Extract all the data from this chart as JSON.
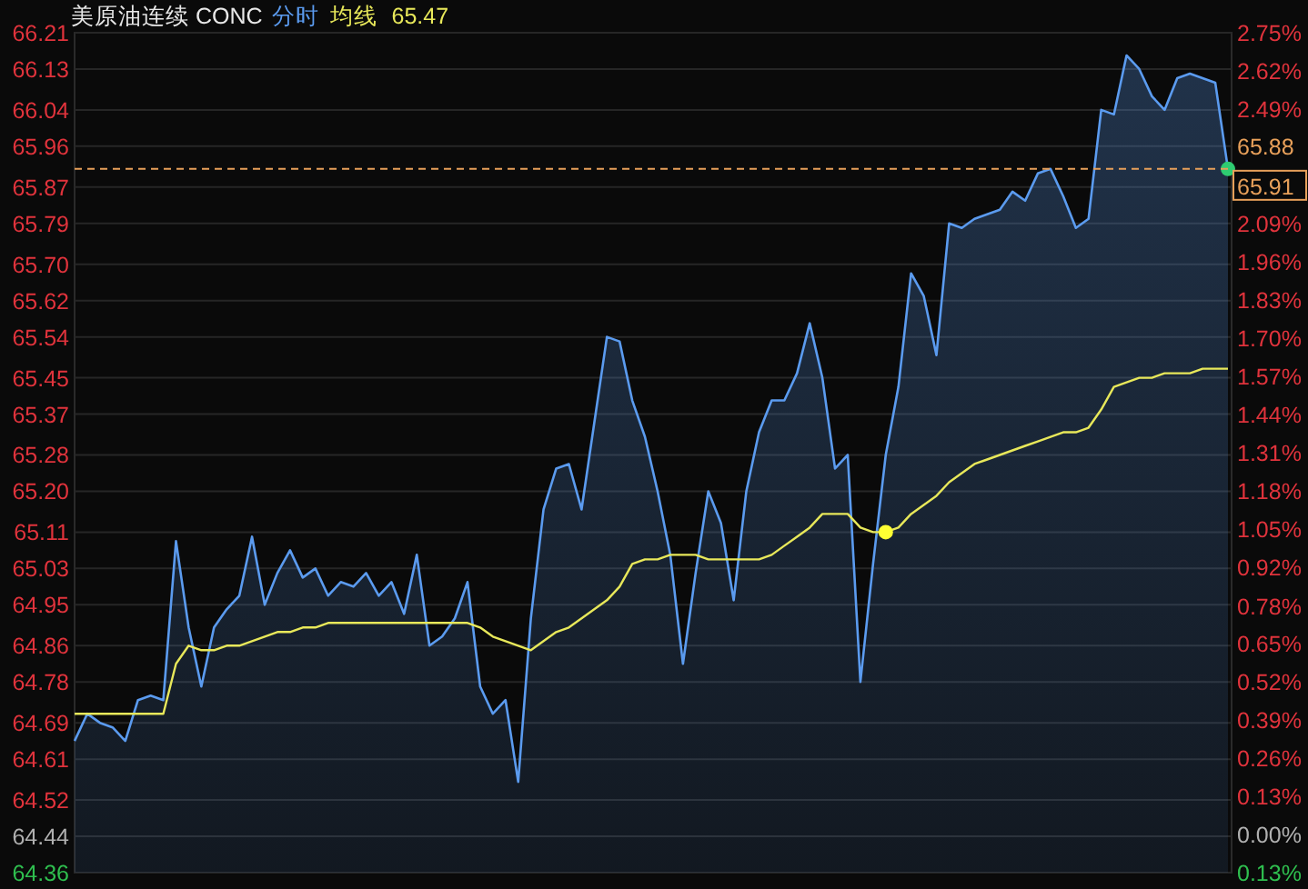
{
  "chart_data": {
    "type": "line",
    "title": "美原油连续 CONC",
    "categories": [
      null,
      null,
      null,
      null,
      null,
      null,
      null,
      null,
      null,
      null,
      null,
      null,
      null,
      null,
      null,
      null,
      null,
      null,
      null,
      null,
      null,
      null,
      null,
      null,
      null,
      null,
      null,
      null,
      null,
      null,
      null,
      null,
      null,
      null,
      null,
      null,
      null,
      null,
      null,
      null,
      null,
      null,
      null,
      null,
      null,
      null,
      null,
      null,
      null,
      null,
      null,
      null,
      null,
      null,
      null,
      null,
      null,
      null,
      null,
      null,
      null,
      null,
      null,
      null,
      null,
      null,
      null,
      null,
      null,
      null,
      null,
      null,
      null,
      null,
      null,
      null,
      null,
      null,
      null,
      null,
      null,
      null,
      null,
      null,
      null,
      null,
      null,
      null,
      null,
      null,
      null,
      null
    ],
    "series": [
      {
        "name": "分时",
        "type": "area",
        "color": "#5b9bef",
        "values": [
          64.65,
          64.71,
          64.69,
          64.68,
          64.65,
          64.74,
          64.75,
          64.74,
          65.09,
          64.9,
          64.77,
          64.9,
          64.94,
          64.97,
          65.1,
          64.95,
          65.02,
          65.07,
          65.01,
          65.03,
          64.97,
          65.0,
          64.99,
          65.02,
          64.97,
          65.0,
          64.93,
          65.06,
          64.86,
          64.88,
          64.92,
          65.0,
          64.77,
          64.71,
          64.74,
          64.56,
          64.92,
          65.16,
          65.25,
          65.26,
          65.16,
          65.35,
          65.54,
          65.53,
          65.4,
          65.32,
          65.2,
          65.06,
          64.82,
          65.02,
          65.2,
          65.13,
          64.96,
          65.2,
          65.33,
          65.4,
          65.4,
          65.46,
          65.57,
          65.45,
          65.25,
          65.28,
          64.78,
          65.04,
          65.28,
          65.43,
          65.68,
          65.63,
          65.5,
          65.79,
          65.78,
          65.8,
          65.81,
          65.82,
          65.86,
          65.84,
          65.9,
          65.91,
          65.85,
          65.78,
          65.8,
          66.04,
          66.03,
          66.16,
          66.13,
          66.07,
          66.04,
          66.11,
          66.12,
          66.11,
          66.1,
          65.91
        ]
      },
      {
        "name": "均线",
        "color": "#e8e85a",
        "values": [
          64.71,
          64.71,
          64.71,
          64.71,
          64.71,
          64.71,
          64.71,
          64.71,
          64.82,
          64.86,
          64.85,
          64.85,
          64.86,
          64.86,
          64.87,
          64.88,
          64.89,
          64.89,
          64.9,
          64.9,
          64.91,
          64.91,
          64.91,
          64.91,
          64.91,
          64.91,
          64.91,
          64.91,
          64.91,
          64.91,
          64.91,
          64.91,
          64.9,
          64.88,
          64.87,
          64.86,
          64.85,
          64.87,
          64.89,
          64.9,
          64.92,
          64.94,
          64.96,
          64.99,
          65.04,
          65.05,
          65.05,
          65.06,
          65.06,
          65.06,
          65.05,
          65.05,
          65.05,
          65.05,
          65.05,
          65.06,
          65.08,
          65.1,
          65.12,
          65.15,
          65.15,
          65.15,
          65.12,
          65.11,
          65.11,
          65.12,
          65.15,
          65.17,
          65.19,
          65.22,
          65.24,
          65.26,
          65.27,
          65.28,
          65.29,
          65.3,
          65.31,
          65.32,
          65.33,
          65.33,
          65.34,
          65.38,
          65.43,
          65.44,
          65.45,
          65.45,
          65.46,
          65.46,
          65.46,
          65.47,
          65.47,
          65.47
        ]
      },
      {
        "type": "scatter",
        "color": "#ffff33",
        "values": [
          null,
          null,
          null,
          null,
          null,
          null,
          null,
          null,
          null,
          null,
          null,
          null,
          null,
          null,
          null,
          null,
          null,
          null,
          null,
          null,
          null,
          null,
          null,
          null,
          null,
          null,
          null,
          null,
          null,
          null,
          null,
          null,
          null,
          null,
          null,
          null,
          null,
          null,
          null,
          null,
          null,
          null,
          null,
          null,
          null,
          null,
          null,
          null,
          null,
          null,
          null,
          null,
          null,
          null,
          null,
          null,
          null,
          null,
          null,
          null,
          null,
          null,
          null,
          null,
          65.11,
          null,
          null,
          null,
          null,
          null,
          null,
          null,
          null,
          null,
          null,
          null,
          null,
          null,
          null,
          null,
          null,
          null,
          null,
          null,
          null,
          null,
          null,
          null,
          null,
          null,
          null,
          null
        ]
      },
      {
        "type": "scatter",
        "color": "#2ecc71",
        "values": [
          null,
          null,
          null,
          null,
          null,
          null,
          null,
          null,
          null,
          null,
          null,
          null,
          null,
          null,
          null,
          null,
          null,
          null,
          null,
          null,
          null,
          null,
          null,
          null,
          null,
          null,
          null,
          null,
          null,
          null,
          null,
          null,
          null,
          null,
          null,
          null,
          null,
          null,
          null,
          null,
          null,
          null,
          null,
          null,
          null,
          null,
          null,
          null,
          null,
          null,
          null,
          null,
          null,
          null,
          null,
          null,
          null,
          null,
          null,
          null,
          null,
          null,
          null,
          null,
          null,
          null,
          null,
          null,
          null,
          null,
          null,
          null,
          null,
          null,
          null,
          null,
          null,
          null,
          null,
          null,
          null,
          null,
          null,
          null,
          null,
          null,
          null,
          null,
          null,
          null,
          null,
          65.91
        ]
      }
    ],
    "ylim": [
      64.36,
      66.21
    ],
    "yticks": [
      64.36,
      64.44,
      64.52,
      64.61,
      64.69,
      64.78,
      64.86,
      64.95,
      65.03,
      65.11,
      {
        "value": 65.2,
        "label": "65.20"
      },
      65.28,
      65.37,
      65.45,
      65.54,
      65.62,
      {
        "value": 65.7,
        "label": "65.70"
      },
      65.79,
      65.87,
      65.96,
      66.04,
      66.13,
      66.21
    ],
    "y2lim": [
      -0.131,
      2.75
    ],
    "y2ticks": [
      {
        "value": -0.131,
        "label": "0.13%"
      },
      {
        "value": 0,
        "label": "0.00%"
      },
      {
        "value": 0.131,
        "label": "0.13%"
      },
      {
        "value": 0.262,
        "label": "0.26%"
      },
      {
        "value": 0.393,
        "label": "0.39%"
      },
      {
        "value": 0.524,
        "label": "0.52%"
      },
      {
        "value": 0.655,
        "label": "0.65%"
      },
      {
        "value": 0.784,
        "label": "0.78%"
      },
      {
        "value": 0.917,
        "label": "0.92%"
      },
      {
        "value": 1.048,
        "label": "1.05%"
      },
      {
        "value": 1.179,
        "label": "1.18%"
      },
      {
        "value": 1.31,
        "label": "1.31%"
      },
      {
        "value": 1.441,
        "label": "1.44%"
      },
      {
        "value": 1.571,
        "label": "1.57%"
      },
      {
        "value": 1.702,
        "label": "1.70%"
      },
      {
        "value": 1.833,
        "label": "1.83%"
      },
      {
        "value": 1.964,
        "label": "1.96%"
      },
      {
        "value": 2.095,
        "label": "2.09%"
      },
      {
        "value": 2.488,
        "label": "2.49%"
      },
      {
        "value": 2.619,
        "label": "2.62%"
      },
      {
        "value": 2.75,
        "label": "2.75%"
      }
    ],
    "ref_lines": [
      {
        "axis": "y",
        "value": 65.91,
        "label": "65.91",
        "color": "#e8a05a",
        "line_style": "dashed"
      }
    ],
    "annotations": [
      "65.47",
      "65.88"
    ],
    "grid": "y",
    "tick_labels": "y"
  }
}
